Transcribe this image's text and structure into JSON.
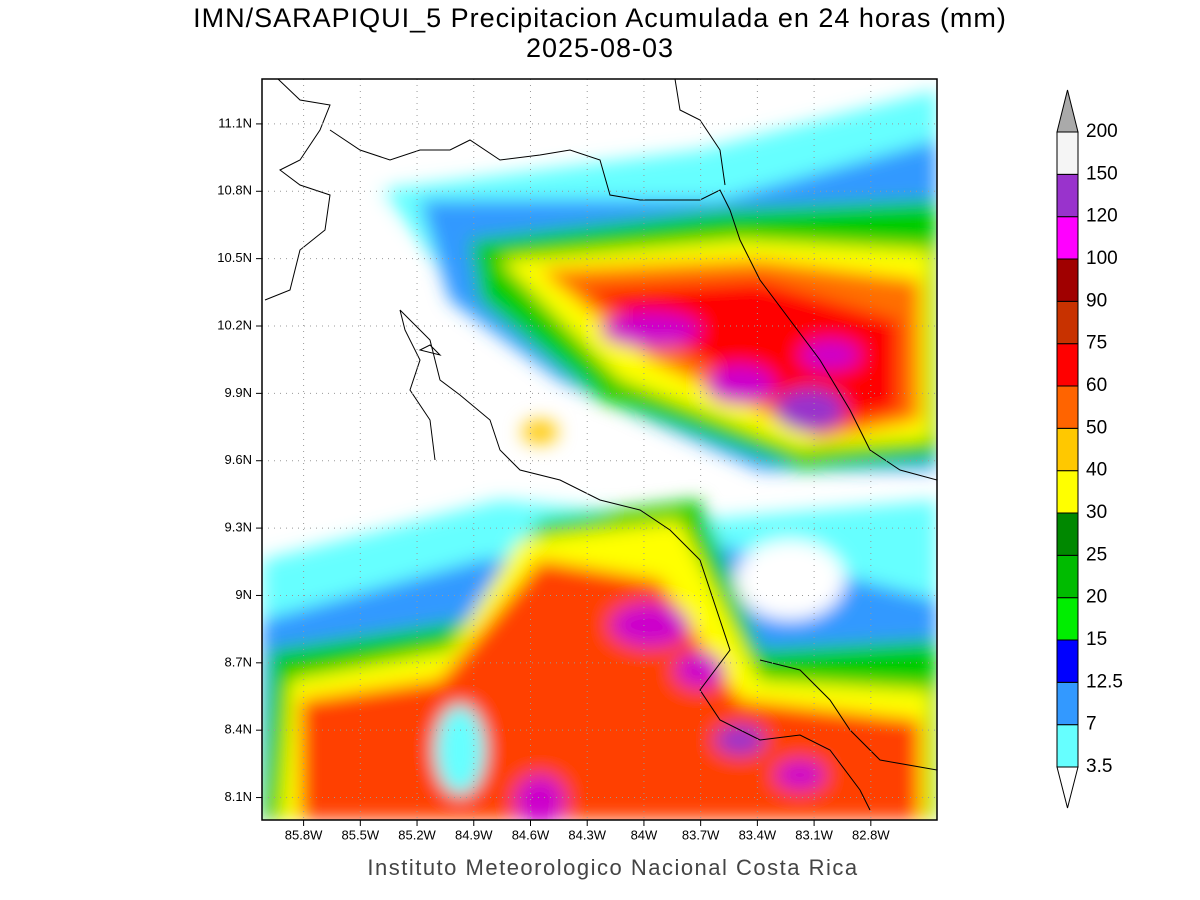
{
  "title": "IMN/SARAPIQUI_5 Precipitacion Acumulada en 24 horas (mm)",
  "subtitle": "2025-08-03",
  "map": {
    "lat_range": [
      8.0,
      11.3
    ],
    "lon_range": [
      -86.02,
      -82.45
    ],
    "lat_ticks": [
      {
        "value": 11.1,
        "label": "11.1N"
      },
      {
        "value": 10.8,
        "label": "10.8N"
      },
      {
        "value": 10.5,
        "label": "10.5N"
      },
      {
        "value": 10.2,
        "label": "10.2N"
      },
      {
        "value": 9.9,
        "label": "9.9N"
      },
      {
        "value": 9.6,
        "label": "9.6N"
      },
      {
        "value": 9.3,
        "label": "9.3N"
      },
      {
        "value": 9,
        "label": "9N"
      },
      {
        "value": 8.7,
        "label": "8.7N"
      },
      {
        "value": 8.4,
        "label": "8.4N"
      },
      {
        "value": 8.1,
        "label": "8.1N"
      }
    ],
    "lon_ticks": [
      {
        "value": -85.8,
        "label": "85.8W"
      },
      {
        "value": -85.5,
        "label": "85.5W"
      },
      {
        "value": -85.2,
        "label": "85.2W"
      },
      {
        "value": -84.9,
        "label": "84.9W"
      },
      {
        "value": -84.6,
        "label": "84.6W"
      },
      {
        "value": -84.3,
        "label": "84.3W"
      },
      {
        "value": -84,
        "label": "84W"
      },
      {
        "value": -83.7,
        "label": "83.7W"
      },
      {
        "value": -83.4,
        "label": "83.4W"
      },
      {
        "value": -83.1,
        "label": "83.1W"
      },
      {
        "value": -82.8,
        "label": "82.8W"
      }
    ],
    "grid": true
  },
  "colorbar": {
    "levels": [
      3.5,
      7,
      12.5,
      15,
      20,
      25,
      30,
      40,
      50,
      60,
      75,
      90,
      100,
      120,
      150,
      200
    ],
    "colors": [
      "#66ffff",
      "#3399ff",
      "#0000ff",
      "#00ee00",
      "#00bb00",
      "#008800",
      "#ffff00",
      "#ffc800",
      "#ff6400",
      "#ff0000",
      "#c83200",
      "#a00000",
      "#ff00ff",
      "#9933cc",
      "#f5f5f5"
    ],
    "under_color": "#ffffff",
    "over_color": "#aaaaaa"
  },
  "footer": "Instituto Meteorologico Nacional Costa Rica"
}
